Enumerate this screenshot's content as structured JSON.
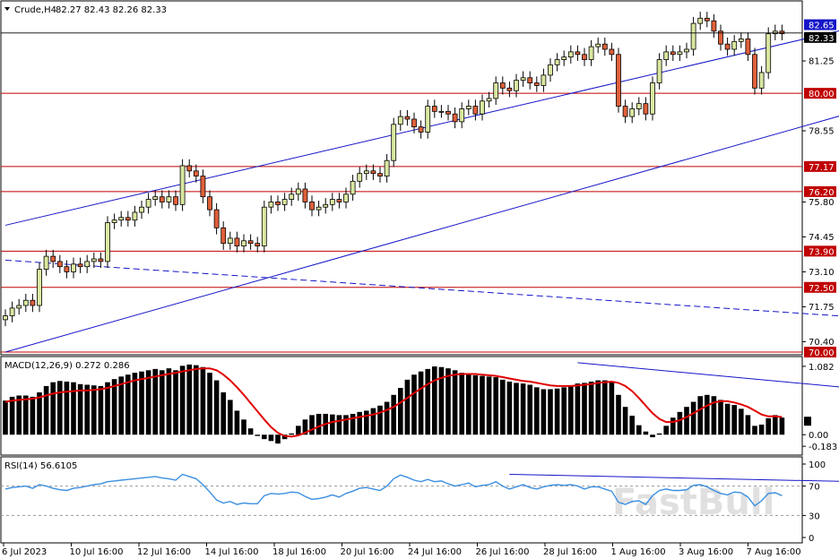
{
  "header": {
    "symbol": "Crude,H4",
    "ohlc": "82.27 82.43 82.26 82.33",
    "macd_label": "MACD(12,26,9) 0.272 0.286",
    "rsi_label": "RSI(14) 56.6105"
  },
  "watermark": "FastBull",
  "colors": {
    "bull": "#d9e8a0",
    "bear": "#e0603a",
    "level": "#c00000",
    "channel": "#1515c8",
    "price_tag": "#1515c8",
    "level_tag": "#c00000",
    "signal": "#e00000",
    "rsi": "#3c8fe0",
    "trend": "#1515c8"
  },
  "chart_data": [
    {
      "type": "candlestick",
      "title": "Crude,H4",
      "x_tick_labels": [
        "6 Jul 2023",
        "10 Jul 16:00",
        "12 Jul 16:00",
        "14 Jul 16:00",
        "18 Jul 16:00",
        "20 Jul 16:00",
        "24 Jul 16:00",
        "26 Jul 16:00",
        "28 Jul 16:00",
        "1 Aug 16:00",
        "3 Aug 16:00",
        "7 Aug 16:00"
      ],
      "y_ticks": [
        "81.25",
        "78.55",
        "75.80",
        "74.45",
        "73.10",
        "71.75",
        "70.40"
      ],
      "ylim": [
        70.0,
        83.5
      ],
      "current_price": "82.33",
      "current_price_top": "82.65",
      "level_labels": [
        "80.00",
        "77.17",
        "76.20",
        "73.90",
        "72.50",
        "70.00"
      ],
      "levels": [
        80.0,
        77.17,
        76.2,
        73.9,
        72.5,
        70.0
      ],
      "closes": [
        71.4,
        71.7,
        71.8,
        72.0,
        71.8,
        73.2,
        73.7,
        73.5,
        73.3,
        73.1,
        73.4,
        73.3,
        73.5,
        73.6,
        73.5,
        75.0,
        75.1,
        75.2,
        75.1,
        75.4,
        75.6,
        75.9,
        76.0,
        75.8,
        76.0,
        75.7,
        77.2,
        77.0,
        76.8,
        76.0,
        75.5,
        74.8,
        74.2,
        74.4,
        74.1,
        74.3,
        74.2,
        74.1,
        75.6,
        75.8,
        75.7,
        75.9,
        76.1,
        76.3,
        75.8,
        75.5,
        75.6,
        75.7,
        75.9,
        75.8,
        76.1,
        76.6,
        76.9,
        77.0,
        76.9,
        76.8,
        77.4,
        78.8,
        79.1,
        79.0,
        78.7,
        78.5,
        79.5,
        79.3,
        79.3,
        79.2,
        78.9,
        79.4,
        79.5,
        79.2,
        79.7,
        79.8,
        80.4,
        80.2,
        80.1,
        80.5,
        80.6,
        80.4,
        80.3,
        80.7,
        81.1,
        81.3,
        81.4,
        81.6,
        81.5,
        81.3,
        81.8,
        81.9,
        81.7,
        81.5,
        79.5,
        79.1,
        79.4,
        79.6,
        79.2,
        80.4,
        81.3,
        81.6,
        81.5,
        81.6,
        81.7,
        82.7,
        82.9,
        82.8,
        82.4,
        81.9,
        81.7,
        82.0,
        82.1,
        81.5,
        80.2,
        80.8,
        82.3,
        82.4,
        82.3
      ],
      "channel_upper": [
        [
          0,
          74.9
        ],
        [
          145,
          83.8
        ]
      ],
      "channel_lower": [
        [
          0,
          70.0
        ],
        [
          145,
          80.8
        ]
      ],
      "dashed_trend": [
        [
          0,
          73.55
        ],
        [
          145,
          71.0
        ]
      ]
    },
    {
      "type": "macd",
      "title": "MACD(12,26,9) 0.272 0.286",
      "y_ticks": [
        "1.082",
        "0.00",
        "-0.183"
      ],
      "ylim": [
        -0.28,
        1.18
      ],
      "hist": [
        0.54,
        0.6,
        0.62,
        0.62,
        0.6,
        0.67,
        0.77,
        0.83,
        0.85,
        0.84,
        0.83,
        0.8,
        0.79,
        0.78,
        0.77,
        0.83,
        0.88,
        0.92,
        0.95,
        0.98,
        1.0,
        1.02,
        1.04,
        1.02,
        1.05,
        1.02,
        1.09,
        1.11,
        1.1,
        1.07,
        0.98,
        0.86,
        0.67,
        0.55,
        0.38,
        0.24,
        0.1,
        -0.02,
        -0.07,
        -0.1,
        -0.14,
        -0.07,
        0.02,
        0.14,
        0.24,
        0.31,
        0.33,
        0.33,
        0.32,
        0.31,
        0.31,
        0.33,
        0.36,
        0.38,
        0.42,
        0.46,
        0.52,
        0.63,
        0.74,
        0.87,
        0.95,
        1.0,
        1.04,
        1.08,
        1.07,
        1.05,
        1.02,
        0.98,
        0.95,
        0.94,
        0.93,
        0.92,
        0.91,
        0.87,
        0.84,
        0.82,
        0.81,
        0.79,
        0.75,
        0.72,
        0.72,
        0.73,
        0.75,
        0.78,
        0.81,
        0.82,
        0.84,
        0.86,
        0.86,
        0.84,
        0.63,
        0.44,
        0.3,
        0.15,
        0.05,
        -0.04,
        0.02,
        0.14,
        0.27,
        0.36,
        0.44,
        0.52,
        0.61,
        0.63,
        0.61,
        0.55,
        0.49,
        0.47,
        0.41,
        0.31,
        0.14,
        0.16,
        0.26,
        0.31,
        0.27
      ],
      "signal": [
        0.52,
        0.54,
        0.55,
        0.56,
        0.57,
        0.59,
        0.62,
        0.65,
        0.67,
        0.68,
        0.69,
        0.7,
        0.7,
        0.71,
        0.72,
        0.74,
        0.77,
        0.8,
        0.83,
        0.86,
        0.88,
        0.9,
        0.92,
        0.94,
        0.96,
        0.98,
        1.0,
        1.02,
        1.04,
        1.05,
        1.05,
        1.02,
        0.95,
        0.86,
        0.75,
        0.63,
        0.5,
        0.37,
        0.24,
        0.12,
        0.03,
        -0.02,
        -0.03,
        -0.01,
        0.03,
        0.08,
        0.13,
        0.17,
        0.2,
        0.22,
        0.24,
        0.26,
        0.28,
        0.3,
        0.32,
        0.35,
        0.39,
        0.44,
        0.51,
        0.58,
        0.66,
        0.73,
        0.8,
        0.86,
        0.9,
        0.93,
        0.95,
        0.96,
        0.96,
        0.96,
        0.95,
        0.94,
        0.93,
        0.91,
        0.89,
        0.87,
        0.85,
        0.84,
        0.82,
        0.8,
        0.78,
        0.77,
        0.77,
        0.77,
        0.78,
        0.79,
        0.8,
        0.82,
        0.83,
        0.84,
        0.82,
        0.77,
        0.69,
        0.58,
        0.46,
        0.34,
        0.25,
        0.2,
        0.2,
        0.23,
        0.28,
        0.34,
        0.4,
        0.46,
        0.51,
        0.53,
        0.53,
        0.51,
        0.48,
        0.44,
        0.38,
        0.32,
        0.29,
        0.29,
        0.28
      ],
      "trend": [
        [
          84,
          1.14
        ],
        [
          145,
          0.53
        ]
      ]
    },
    {
      "type": "rsi",
      "title": "RSI(14) 56.6105",
      "y_ticks": [
        "100",
        "70",
        "30",
        "0"
      ],
      "ylim": [
        0,
        100
      ],
      "levels": [
        70,
        30
      ],
      "values": [
        66,
        68,
        69,
        70,
        67,
        72,
        70,
        67,
        65,
        64,
        67,
        68,
        70,
        72,
        73,
        76,
        77,
        78,
        79,
        80,
        81,
        82,
        83,
        81,
        80,
        78,
        86,
        83,
        80,
        72,
        62,
        51,
        47,
        49,
        45,
        47,
        46,
        46,
        57,
        60,
        59,
        60,
        62,
        61,
        56,
        52,
        53,
        55,
        58,
        55,
        60,
        63,
        67,
        68,
        66,
        64,
        70,
        80,
        85,
        82,
        78,
        76,
        79,
        76,
        77,
        73,
        70,
        72,
        74,
        69,
        71,
        72,
        76,
        70,
        66,
        69,
        72,
        68,
        66,
        69,
        71,
        72,
        71,
        72,
        70,
        66,
        69,
        69,
        66,
        63,
        48,
        45,
        49,
        50,
        45,
        57,
        64,
        66,
        64,
        64,
        65,
        71,
        72,
        69,
        64,
        60,
        58,
        62,
        61,
        55,
        43,
        50,
        60,
        61,
        57
      ],
      "trend": [
        [
          74,
          86
        ],
        [
          145,
          72
        ]
      ]
    }
  ]
}
